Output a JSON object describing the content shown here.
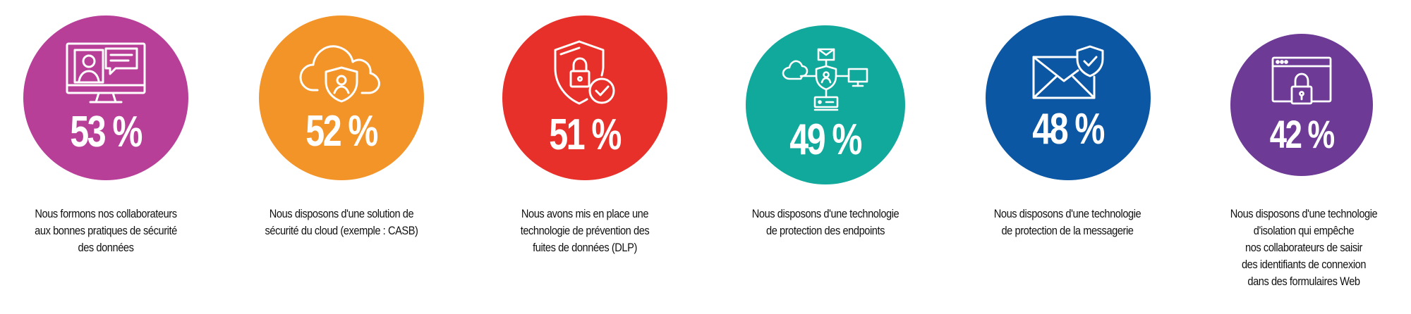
{
  "items": [
    {
      "value": "53 %",
      "color": "#b83f98",
      "icon": "monitor-video-chat-icon",
      "caption": [
        "Nous formons nos collaborateurs",
        "aux bonnes pratiques de sécurité",
        "des données"
      ]
    },
    {
      "value": "52 %",
      "color": "#f39429",
      "icon": "cloud-shield-user-icon",
      "caption": [
        "Nous disposons d'une solution de",
        "sécurité du cloud (exemple : CASB)"
      ]
    },
    {
      "value": "51 %",
      "color": "#e8302a",
      "icon": "shield-lock-check-icon",
      "caption": [
        "Nous avons mis en place une",
        "technologie de prévention des",
        "fuites de données (DLP)"
      ]
    },
    {
      "value": "49 %",
      "color": "#10a99b",
      "icon": "network-shield-endpoints-icon",
      "caption": [
        "Nous disposons d'une technologie",
        "de protection des endpoints"
      ]
    },
    {
      "value": "48 %",
      "color": "#0c57a3",
      "icon": "envelope-shield-icon",
      "caption": [
        "Nous disposons d'une technologie",
        "de protection de la messagerie"
      ]
    },
    {
      "value": "42 %",
      "color": "#6d3a96",
      "icon": "browser-lock-icon",
      "caption": [
        "Nous disposons d'une technologie",
        "d'isolation qui empêche",
        "nos collaborateurs de saisir",
        "des identifiants de connexion",
        "dans des formulaires Web"
      ]
    }
  ]
}
